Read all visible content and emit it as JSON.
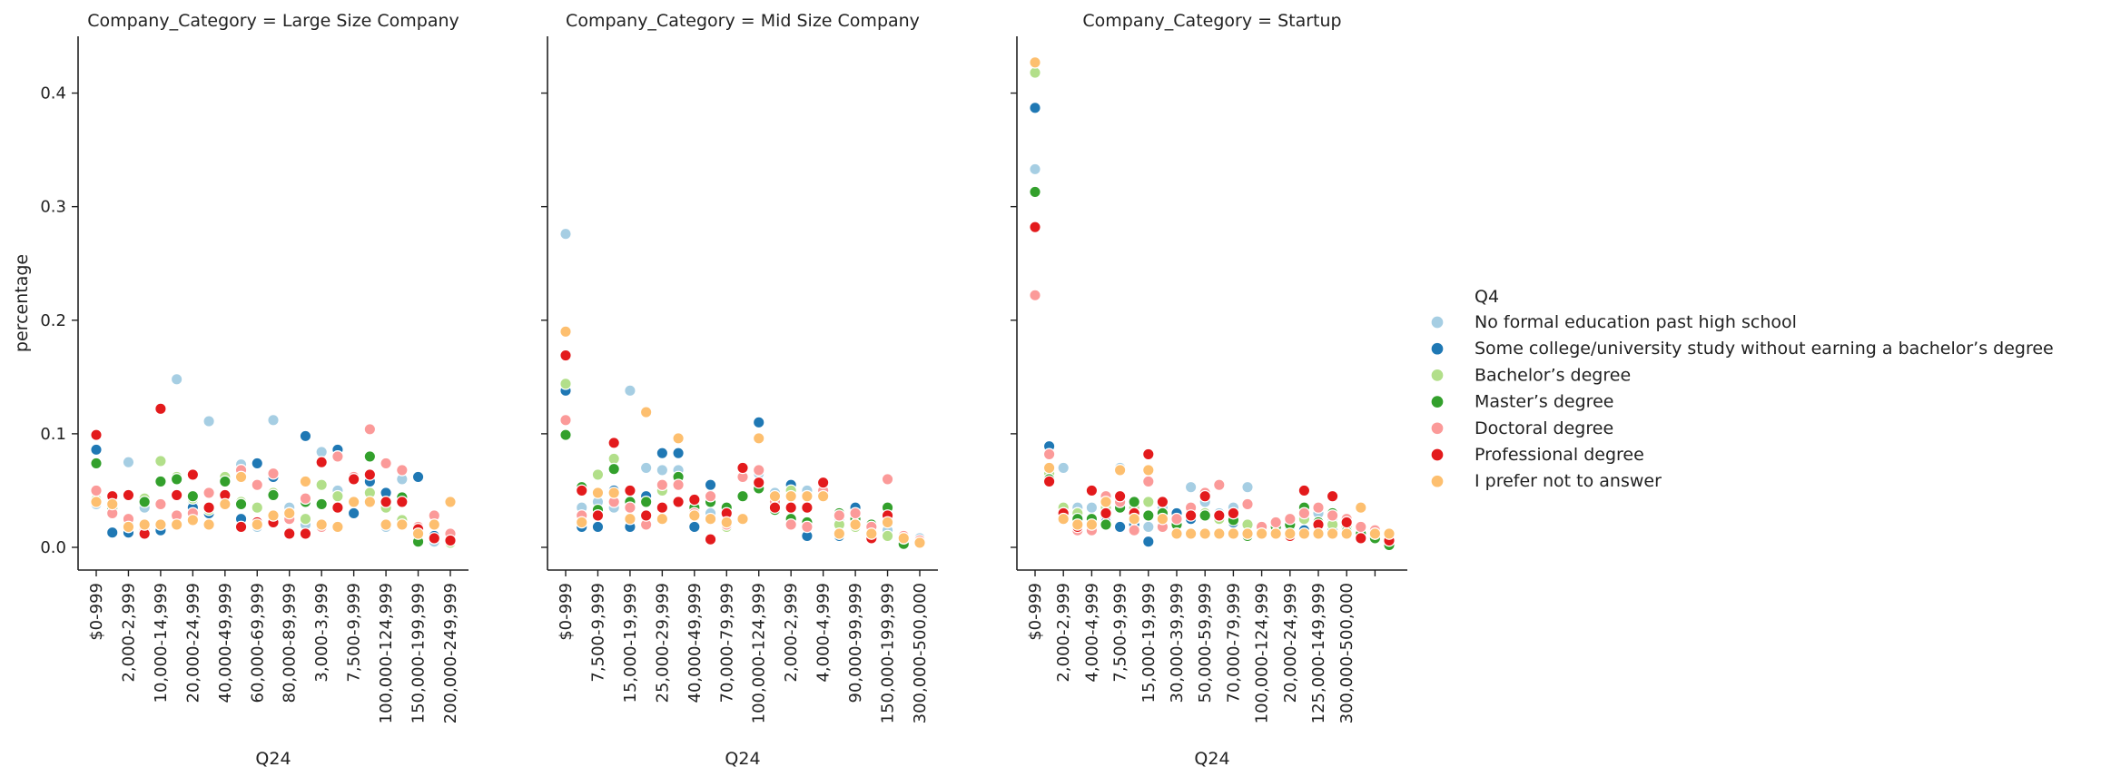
{
  "chart_data": {
    "type": "scatter",
    "facet_variable": "Company_Category",
    "xlabel": "Q24",
    "ylabel": "percentage",
    "ylim": [
      -0.02,
      0.45
    ],
    "y_ticks": [
      0.0,
      0.1,
      0.2,
      0.3,
      0.4
    ],
    "y_tick_labels": [
      "0.0",
      "0.1",
      "0.2",
      "0.3",
      "0.4"
    ],
    "legend": {
      "title": "Q4",
      "placement": "right",
      "entries": [
        {
          "name": "No formal education past high school",
          "color": "#a6cee3"
        },
        {
          "name": "Some college/university study without earning a bachelor’s degree",
          "color": "#1f78b4"
        },
        {
          "name": "Bachelor’s degree",
          "color": "#b2df8a"
        },
        {
          "name": "Master’s degree",
          "color": "#33a02c"
        },
        {
          "name": "Doctoral degree",
          "color": "#fb9a99"
        },
        {
          "name": "Professional degree",
          "color": "#e31a1c"
        },
        {
          "name": "I prefer not to answer",
          "color": "#fdbf6f"
        }
      ]
    },
    "panels": [
      {
        "title": "Company_Category = Large Size Company",
        "tick_labels": [
          "$0-999",
          "2,000-2,999",
          "10,000-14,999",
          "20,000-24,999",
          "40,000-49,999",
          "60,000-69,999",
          "80,000-89,999",
          "3,000-3,999",
          "7,500-9,999",
          "100,000-124,999",
          "150,000-199,999",
          "200,000-249,999"
        ],
        "series": [
          [
            0.038,
            0.03,
            0.075,
            0.035,
            0.018,
            0.148,
            0.04,
            0.111,
            0.06,
            0.073,
            0.018,
            0.112,
            0.035,
            0.02,
            0.084,
            0.05,
            0.06,
            0.04,
            0.018,
            0.06,
            0.015,
            0.005,
            0.01
          ],
          [
            0.086,
            0.013,
            0.013,
            0.02,
            0.015,
            0.02,
            0.035,
            0.03,
            0.058,
            0.025,
            0.074,
            0.062,
            0.013,
            0.098,
            0.018,
            0.086,
            0.03,
            0.058,
            0.048,
            0.02,
            0.062,
            0.01,
            0.008
          ],
          [
            0.042,
            0.03,
            0.018,
            0.043,
            0.076,
            0.062,
            0.043,
            0.033,
            0.062,
            0.04,
            0.035,
            0.048,
            0.03,
            0.025,
            0.055,
            0.045,
            0.04,
            0.048,
            0.035,
            0.024,
            0.012,
            0.02,
            0.004
          ],
          [
            0.074,
            0.035,
            0.022,
            0.04,
            0.058,
            0.06,
            0.045,
            0.035,
            0.058,
            0.038,
            0.02,
            0.046,
            0.03,
            0.04,
            0.038,
            0.035,
            0.06,
            0.08,
            0.04,
            0.044,
            0.005,
            0.02,
            0.01
          ],
          [
            0.05,
            0.03,
            0.025,
            0.015,
            0.038,
            0.028,
            0.03,
            0.048,
            0.045,
            0.068,
            0.055,
            0.065,
            0.025,
            0.043,
            0.018,
            0.08,
            0.062,
            0.104,
            0.074,
            0.068,
            0.018,
            0.028,
            0.012
          ],
          [
            0.099,
            0.045,
            0.046,
            0.012,
            0.122,
            0.046,
            0.064,
            0.035,
            0.046,
            0.018,
            0.022,
            0.022,
            0.012,
            0.012,
            0.075,
            0.035,
            0.06,
            0.064,
            0.04,
            0.04,
            0.016,
            0.008,
            0.006
          ],
          [
            0.04,
            0.038,
            0.018,
            0.02,
            0.02,
            0.02,
            0.024,
            0.02,
            0.038,
            0.062,
            0.02,
            0.028,
            0.03,
            0.058,
            0.02,
            0.018,
            0.04,
            0.04,
            0.02,
            0.02,
            0.012,
            0.02,
            0.04
          ]
        ]
      },
      {
        "title": "Company_Category = Mid Size Company",
        "tick_labels": [
          "$0-999",
          "7,500-9,999",
          "15,000-19,999",
          "25,000-29,999",
          "40,000-49,999",
          "70,000-79,999",
          "100,000-124,999",
          "2,000-2,999",
          "4,000-4,999",
          "90,000-99,999",
          "150,000-199,999",
          "300,000-500,000"
        ],
        "series": [
          [
            0.276,
            0.035,
            0.04,
            0.035,
            0.138,
            0.07,
            0.068,
            0.068,
            0.04,
            0.03,
            0.035,
            0.07,
            0.065,
            0.048,
            0.045,
            0.05,
            0.05,
            0.025,
            0.03,
            0.02,
            0.015,
            0.01,
            0.008
          ],
          [
            0.138,
            0.018,
            0.018,
            0.05,
            0.018,
            0.045,
            0.083,
            0.083,
            0.018,
            0.055,
            0.03,
            0.045,
            0.11,
            0.04,
            0.055,
            0.01,
            0.055,
            0.01,
            0.035,
            0.008,
            0.035,
            0.005,
            0.005
          ],
          [
            0.144,
            0.05,
            0.064,
            0.078,
            0.05,
            0.04,
            0.05,
            0.055,
            0.03,
            0.045,
            0.018,
            0.045,
            0.055,
            0.04,
            0.05,
            0.045,
            0.045,
            0.02,
            0.018,
            0.018,
            0.01,
            0.01,
            0.005
          ],
          [
            0.099,
            0.053,
            0.033,
            0.069,
            0.04,
            0.04,
            0.035,
            0.062,
            0.035,
            0.04,
            0.035,
            0.045,
            0.052,
            0.033,
            0.025,
            0.022,
            0.05,
            0.03,
            0.025,
            0.02,
            0.035,
            0.003,
            0.005
          ],
          [
            0.112,
            0.028,
            0.028,
            0.04,
            0.035,
            0.02,
            0.055,
            0.055,
            0.03,
            0.045,
            0.02,
            0.062,
            0.068,
            0.04,
            0.02,
            0.018,
            0.05,
            0.028,
            0.03,
            0.018,
            0.06,
            0.01,
            0.006
          ],
          [
            0.169,
            0.05,
            0.028,
            0.092,
            0.05,
            0.028,
            0.035,
            0.04,
            0.042,
            0.007,
            0.03,
            0.07,
            0.057,
            0.035,
            0.035,
            0.035,
            0.057,
            0.012,
            0.02,
            0.008,
            0.028,
            0.008,
            0.004
          ],
          [
            0.19,
            0.022,
            0.048,
            0.048,
            0.025,
            0.119,
            0.025,
            0.096,
            0.028,
            0.025,
            0.022,
            0.025,
            0.096,
            0.045,
            0.045,
            0.045,
            0.045,
            0.012,
            0.02,
            0.012,
            0.022,
            0.008,
            0.004
          ]
        ]
      },
      {
        "title": "Company_Category = Startup",
        "tick_labels": [
          "$0-999",
          "2,000-2,999",
          "4,000-4,999",
          "7,500-9,999",
          "15,000-19,999",
          "30,000-39,999",
          "50,000-59,999",
          "70,000-79,999",
          "100,000-124,999",
          "20,000-24,999",
          "125,000-149,999",
          "300,000-500,000"
        ],
        "series": [
          [
            0.333,
            0.07,
            0.07,
            0.035,
            0.035,
            0.025,
            0.07,
            0.018,
            0.018,
            0.035,
            0.03,
            0.053,
            0.04,
            0.03,
            0.035,
            0.053,
            0.018,
            0.018,
            0.025,
            0.03,
            0.03,
            0.025,
            0.02,
            0.015,
            0.012,
            0.01
          ],
          [
            0.387,
            0.089,
            0.035,
            0.03,
            0.024,
            0.022,
            0.018,
            0.02,
            0.005,
            0.025,
            0.03,
            0.025,
            0.03,
            0.028,
            0.022,
            0.01,
            0.016,
            0.012,
            0.018,
            0.015,
            0.012,
            0.015,
            0.012,
            0.01,
            0.008,
            0.004
          ],
          [
            0.418,
            0.065,
            0.035,
            0.03,
            0.02,
            0.035,
            0.04,
            0.035,
            0.04,
            0.025,
            0.02,
            0.03,
            0.03,
            0.025,
            0.025,
            0.02,
            0.018,
            0.016,
            0.022,
            0.025,
            0.022,
            0.02,
            0.018,
            0.015,
            0.01,
            0.008
          ],
          [
            0.313,
            0.06,
            0.03,
            0.025,
            0.025,
            0.02,
            0.035,
            0.04,
            0.028,
            0.03,
            0.02,
            0.03,
            0.028,
            0.028,
            0.024,
            0.01,
            0.015,
            0.018,
            0.02,
            0.035,
            0.022,
            0.03,
            0.014,
            0.012,
            0.008,
            0.002
          ],
          [
            0.222,
            0.082,
            0.025,
            0.015,
            0.015,
            0.045,
            0.04,
            0.015,
            0.058,
            0.018,
            0.025,
            0.035,
            0.048,
            0.055,
            0.03,
            0.038,
            0.018,
            0.022,
            0.025,
            0.03,
            0.035,
            0.028,
            0.025,
            0.018,
            0.015,
            0.012
          ],
          [
            0.282,
            0.058,
            0.03,
            0.018,
            0.05,
            0.03,
            0.045,
            0.03,
            0.082,
            0.04,
            0.012,
            0.028,
            0.045,
            0.028,
            0.03,
            0.012,
            0.012,
            0.012,
            0.01,
            0.05,
            0.02,
            0.045,
            0.022,
            0.008,
            0.012,
            0.006
          ],
          [
            0.427,
            0.07,
            0.025,
            0.02,
            0.02,
            0.04,
            0.068,
            0.025,
            0.068,
            0.025,
            0.012,
            0.012,
            0.012,
            0.012,
            0.012,
            0.012,
            0.012,
            0.012,
            0.012,
            0.012,
            0.012,
            0.012,
            0.012,
            0.035,
            0.012,
            0.012
          ]
        ]
      }
    ]
  }
}
